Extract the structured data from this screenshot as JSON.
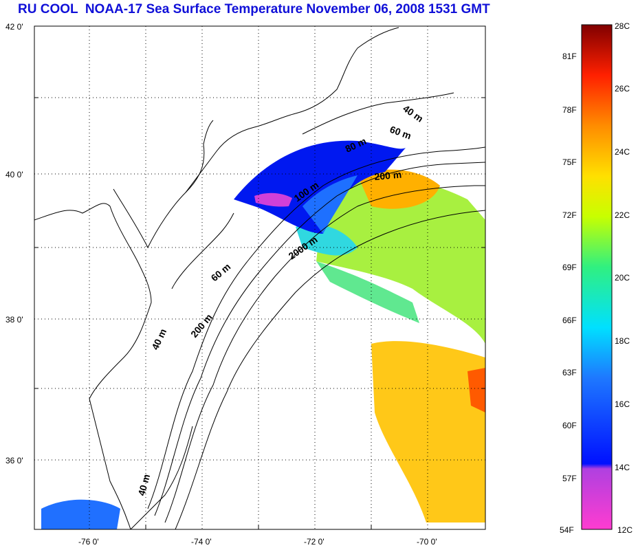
{
  "title": "RU COOL  NOAA-17 Sea Surface Temperature November 06, 2008 1531 GMT",
  "lat_ticks": [
    "42 0'",
    "40 0'",
    "38 0'",
    "36 0'"
  ],
  "lon_ticks": [
    "-76 0'",
    "-74 0'",
    "-72 0'",
    "-70 0'"
  ],
  "contour_labels": [
    "40 m",
    "60 m",
    "80 m",
    "200 m",
    "100 m",
    "2000 m",
    "60 m",
    "200 m",
    "40 m",
    "40 m"
  ],
  "colorbar": {
    "fahrenheit": [
      "81F",
      "78F",
      "75F",
      "72F",
      "69F",
      "66F",
      "63F",
      "60F",
      "57F",
      "54F"
    ],
    "celsius": [
      "28C",
      "26C",
      "24C",
      "22C",
      "20C",
      "18C",
      "16C",
      "14C",
      "12C"
    ],
    "colors": [
      "#ff3cd0",
      "#b040e0",
      "#0010ff",
      "#1e78ff",
      "#00e0ff",
      "#30f080",
      "#c8ff00",
      "#ffe000",
      "#ff8c00",
      "#ff2000",
      "#800000"
    ]
  },
  "colors": {
    "title": "#1010d8",
    "land": "#ffffff",
    "coast": "#000000"
  }
}
